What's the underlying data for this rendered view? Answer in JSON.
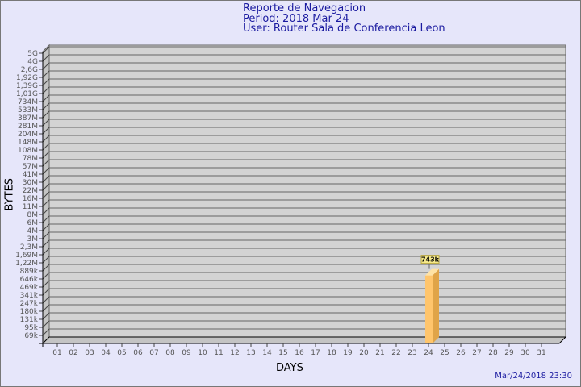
{
  "title": "Reporte de Navegacion",
  "subtitle_period": "Period: 2018 Mar 24",
  "subtitle_user": "User: Router Sala de Conferencia Leon",
  "timestamp": "Mar/24/2018 23:30",
  "colors": {
    "background": "#e6e6fa",
    "plot": "#d3d3d3",
    "bar": "#ffc56c",
    "bar_side": "#e0a448",
    "bar_top": "#ffe2a4",
    "title": "#1a1aa0"
  },
  "chart_data": {
    "type": "bar",
    "style": "3d",
    "xlabel": "DAYS",
    "ylabel": "BYTES",
    "grid": true,
    "y_ticks": [
      "5G",
      "4G",
      "2,6G",
      "1,92G",
      "1,39G",
      "1,01G",
      "734M",
      "533M",
      "387M",
      "281M",
      "204M",
      "148M",
      "108M",
      "78M",
      "57M",
      "41M",
      "30M",
      "22M",
      "16M",
      "11M",
      "8M",
      "6M",
      "4M",
      "3M",
      "2,3M",
      "1,69M",
      "1,22M",
      "889k",
      "646k",
      "469k",
      "341k",
      "247k",
      "180k",
      "131k",
      "95k",
      "69k"
    ],
    "categories": [
      "01",
      "02",
      "03",
      "04",
      "05",
      "06",
      "07",
      "08",
      "09",
      "10",
      "11",
      "12",
      "13",
      "14",
      "15",
      "16",
      "17",
      "18",
      "19",
      "20",
      "21",
      "22",
      "23",
      "24",
      "25",
      "26",
      "27",
      "28",
      "29",
      "30",
      "31"
    ],
    "values": [
      0,
      0,
      0,
      0,
      0,
      0,
      0,
      0,
      0,
      0,
      0,
      0,
      0,
      0,
      0,
      0,
      0,
      0,
      0,
      0,
      0,
      0,
      0,
      743000,
      0,
      0,
      0,
      0,
      0,
      0,
      0
    ],
    "data_labels": {
      "24": "743k"
    }
  }
}
